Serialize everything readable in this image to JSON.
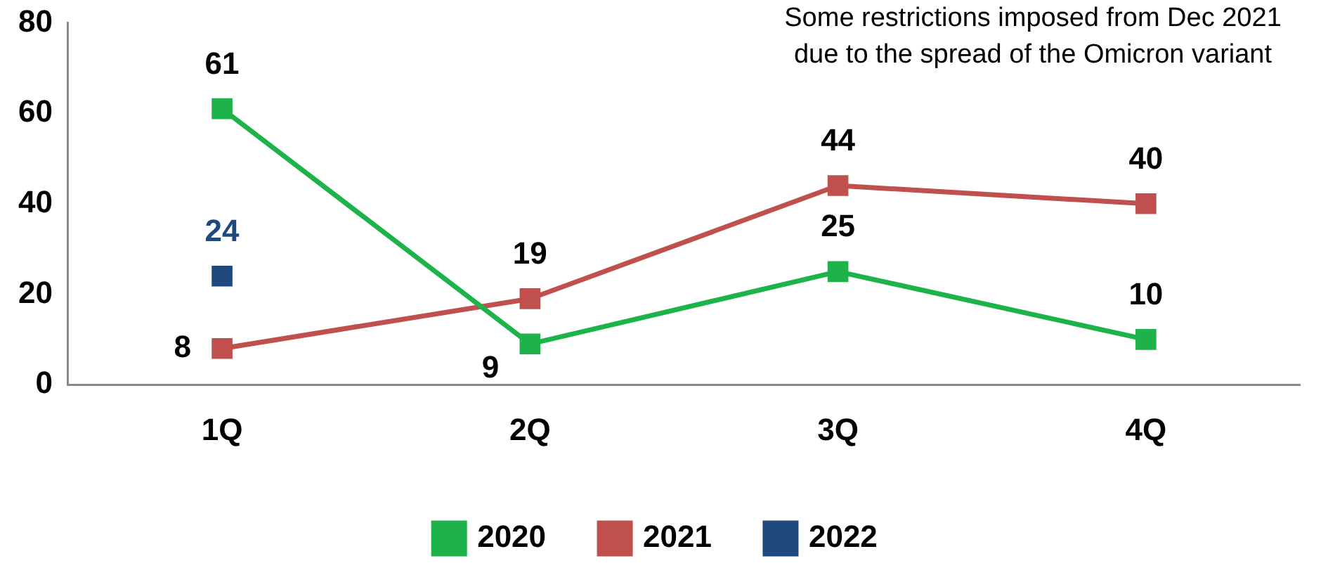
{
  "chart_data": {
    "type": "line",
    "categories": [
      "1Q",
      "2Q",
      "3Q",
      "4Q"
    ],
    "series": [
      {
        "name": "2020",
        "color": "#1db34a",
        "values": [
          61,
          9,
          25,
          10
        ]
      },
      {
        "name": "2021",
        "color": "#c0504d",
        "values": [
          8,
          19,
          44,
          40
        ]
      },
      {
        "name": "2022",
        "color": "#1f497d",
        "values": [
          24,
          null,
          null,
          null
        ]
      }
    ],
    "ylim": [
      0,
      80
    ],
    "yticks": [
      0,
      20,
      40,
      60,
      80
    ],
    "grid": false,
    "legend": "bottom",
    "marker": "square",
    "line_style": "solid",
    "data_labels": true,
    "annotations": [
      "Some restrictions imposed from Dec 2021\ndue to the spread of the Omicron variant"
    ]
  }
}
